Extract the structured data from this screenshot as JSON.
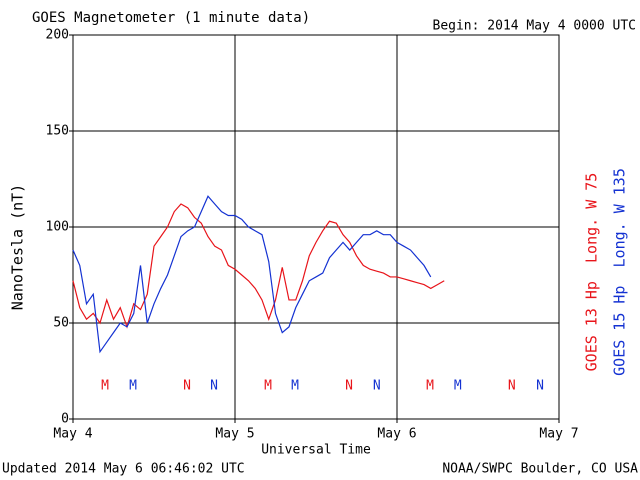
{
  "chart_data": {
    "type": "line",
    "title": "GOES Magnetometer (1 minute data)",
    "subtitle": "Begin:  2014 May 4 0000 UTC",
    "xlabel": "Universal Time",
    "ylabel": "NanoTesla (nT)",
    "footer_left": "Updated 2014 May  6 06:46:02 UTC",
    "footer_right": "NOAA/SWPC Boulder, CO USA",
    "xlim": [
      0,
      72
    ],
    "xticks": [
      {
        "value": 0,
        "label": "May 4"
      },
      {
        "value": 24,
        "label": "May 5"
      },
      {
        "value": 48,
        "label": "May 6"
      },
      {
        "value": 72,
        "label": "May 7"
      }
    ],
    "ylim": [
      0,
      200
    ],
    "yticks": [
      0,
      50,
      100,
      150,
      200
    ],
    "grid": true,
    "x": [
      0,
      1,
      2,
      3,
      4,
      5,
      6,
      7,
      8,
      9,
      10,
      11,
      12,
      13,
      14,
      15,
      16,
      17,
      18,
      19,
      20,
      21,
      22,
      23,
      24,
      25,
      26,
      27,
      28,
      29,
      30,
      31,
      32,
      33,
      34,
      35,
      36,
      37,
      38,
      39,
      40,
      41,
      42,
      43,
      44,
      45,
      46,
      47,
      48,
      49,
      50,
      51,
      52,
      53,
      54,
      55
    ],
    "series": [
      {
        "name": "GOES 13 Hp  Long. W 75",
        "color": "#e8141a",
        "values": [
          72,
          58,
          52,
          55,
          50,
          62,
          52,
          58,
          48,
          60,
          57,
          65,
          90,
          95,
          100,
          108,
          112,
          110,
          105,
          102,
          95,
          90,
          88,
          80,
          78,
          75,
          72,
          68,
          62,
          52,
          62,
          79,
          62,
          62,
          72,
          85,
          92,
          98,
          103,
          102,
          96,
          92,
          85,
          80,
          78,
          77,
          76,
          74,
          74,
          73,
          72,
          71,
          70,
          68,
          70,
          72
        ]
      },
      {
        "name": "GOES 15 Hp  Long. W 135",
        "color": "#1432d2",
        "values": [
          88,
          80,
          60,
          65,
          35,
          40,
          45,
          50,
          48,
          55,
          80,
          50,
          60,
          68,
          75,
          85,
          95,
          98,
          100,
          108,
          116,
          112,
          108,
          106,
          106,
          104,
          100,
          98,
          96,
          82,
          55,
          45,
          48,
          58,
          65,
          72,
          74,
          76,
          84,
          88,
          92,
          88,
          92,
          96,
          96,
          98,
          96,
          96,
          92,
          90,
          88,
          84,
          80,
          74,
          null,
          null
        ]
      }
    ],
    "annotations": [
      {
        "text": "M",
        "x": 4.75,
        "color": "#e8141a"
      },
      {
        "text": "M",
        "x": 8.9,
        "color": "#1432d2"
      },
      {
        "text": "N",
        "x": 16.9,
        "color": "#e8141a"
      },
      {
        "text": "N",
        "x": 20.9,
        "color": "#1432d2"
      },
      {
        "text": "M",
        "x": 28.9,
        "color": "#e8141a"
      },
      {
        "text": "M",
        "x": 32.9,
        "color": "#1432d2"
      },
      {
        "text": "N",
        "x": 40.9,
        "color": "#e8141a"
      },
      {
        "text": "N",
        "x": 45.0,
        "color": "#1432d2"
      },
      {
        "text": "M",
        "x": 52.9,
        "color": "#e8141a"
      },
      {
        "text": "M",
        "x": 57.0,
        "color": "#1432d2"
      },
      {
        "text": "N",
        "x": 65.0,
        "color": "#e8141a"
      },
      {
        "text": "N",
        "x": 69.2,
        "color": "#1432d2"
      }
    ]
  }
}
